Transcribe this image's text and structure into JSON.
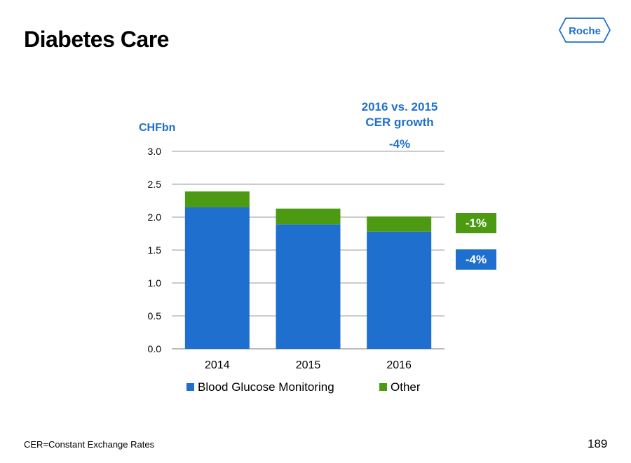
{
  "header": {
    "title": "Diabetes Care"
  },
  "logo": {
    "text": "Roche",
    "color": "#1f6fcf"
  },
  "growth": {
    "header_line1": "2016 vs. 2015",
    "header_line2": "CER growth",
    "total": "-4%",
    "other": "-1%",
    "bgm": "-4%"
  },
  "footer": {
    "footnote": "CER=Constant Exchange Rates",
    "page_number": "189"
  },
  "chart_data": {
    "type": "bar",
    "stacked": true,
    "unit_label": "CHFbn",
    "categories": [
      "2014",
      "2015",
      "2016"
    ],
    "series": [
      {
        "name": "Blood Glucose Monitoring",
        "values": [
          2.15,
          1.89,
          1.78
        ],
        "color": "#1f6fcf"
      },
      {
        "name": "Other",
        "values": [
          0.24,
          0.24,
          0.23
        ],
        "color": "#4c9a12"
      }
    ],
    "ylim": [
      0,
      3.0
    ],
    "yticks": [
      "0.0",
      "0.5",
      "1.0",
      "1.5",
      "2.0",
      "2.5",
      "3.0"
    ],
    "grid": true,
    "legend": "bottom"
  }
}
